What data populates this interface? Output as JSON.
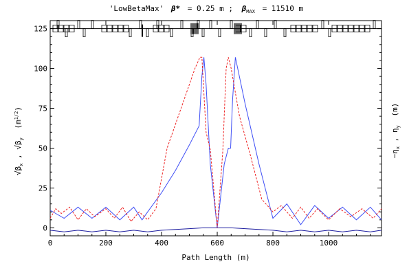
{
  "chart_data": {
    "type": "line",
    "title": "'LowBetaMax': β* = 0.25 m ; βMAX = 11510 m",
    "title_parts": {
      "name": "'LowBetaMax'",
      "beta_star_label": "β*",
      "beta_star_value": "= 0.25 m ;",
      "beta_max_label": "β",
      "beta_max_sub": "MAX",
      "beta_max_value": "= 11510 m"
    },
    "xlabel": "Path Length (m)",
    "ylabel_left": "√βx , √βy (m1/2)",
    "ylabel_left_parts": {
      "a": "√β",
      "a_sub": "x",
      "sep": " , ",
      "b": "√β",
      "b_sub": "y",
      "unit": "(m",
      "unit_sup": "1/2",
      "unit_close": ")"
    },
    "ylabel_right": "-ηx , ηy (m)",
    "ylabel_right_parts": {
      "a": "−η",
      "a_sub": "x",
      "sep": " , ",
      "b": "η",
      "b_sub": "y",
      "unit": "(m)"
    },
    "xlim": [
      0,
      1190
    ],
    "ylim": [
      -5,
      130
    ],
    "x_ticks": [
      0,
      200,
      400,
      600,
      800,
      1000
    ],
    "y_ticks": [
      0,
      25,
      50,
      75,
      100,
      125
    ],
    "grid": false,
    "colors": {
      "beta_x": "#3f4ff5",
      "beta_y": "#ee2222",
      "dispersion": "#1a1a9e",
      "axes": "#000000"
    },
    "series": [
      {
        "style": "solid-blue",
        "x": [
          0,
          20,
          50,
          100,
          150,
          200,
          250,
          300,
          330,
          350,
          400,
          450,
          500,
          535,
          545,
          552,
          560,
          575,
          600,
          625,
          640,
          648,
          655,
          665,
          700,
          750,
          800,
          850,
          900,
          950,
          1000,
          1050,
          1100,
          1150,
          1190
        ],
        "y": [
          11,
          9,
          6,
          13,
          6,
          13,
          5,
          13,
          5,
          10,
          22,
          36,
          52,
          64,
          95,
          107,
          90,
          40,
          0,
          40,
          50,
          50,
          80,
          107,
          78,
          40,
          6,
          15,
          2,
          14,
          6,
          13,
          5,
          13,
          5
        ]
      },
      {
        "style": "dashed-red",
        "x": [
          0,
          20,
          40,
          70,
          100,
          130,
          160,
          200,
          230,
          260,
          290,
          320,
          350,
          380,
          420,
          470,
          520,
          538,
          545,
          560,
          575,
          600,
          620,
          632,
          640,
          650,
          680,
          720,
          760,
          800,
          830,
          870,
          900,
          930,
          960,
          1000,
          1040,
          1080,
          1120,
          1160,
          1190
        ],
        "y": [
          6,
          12,
          9,
          13,
          5,
          12,
          7,
          12,
          6,
          13,
          4,
          10,
          5,
          12,
          50,
          75,
          100,
          107,
          107,
          60,
          49,
          0,
          48,
          100,
          107,
          100,
          70,
          45,
          18,
          10,
          14,
          6,
          13,
          6,
          12,
          5,
          12,
          7,
          12,
          6,
          12
        ]
      },
      {
        "style": "solid-navy",
        "x": [
          0,
          50,
          100,
          150,
          200,
          250,
          300,
          350,
          400,
          450,
          500,
          550,
          600,
          650,
          700,
          750,
          800,
          850,
          900,
          950,
          1000,
          1050,
          1100,
          1150,
          1190
        ],
        "y": [
          -1.5,
          -2.5,
          -1.5,
          -2.5,
          -1.5,
          -2.5,
          -1.5,
          -2.5,
          -1.5,
          -1.0,
          -0.5,
          0,
          0,
          0,
          -0.5,
          -1.0,
          -1.5,
          -2.5,
          -1.5,
          -2.5,
          -1.5,
          -2.5,
          -1.5,
          -2.5,
          -1.5
        ]
      }
    ]
  }
}
